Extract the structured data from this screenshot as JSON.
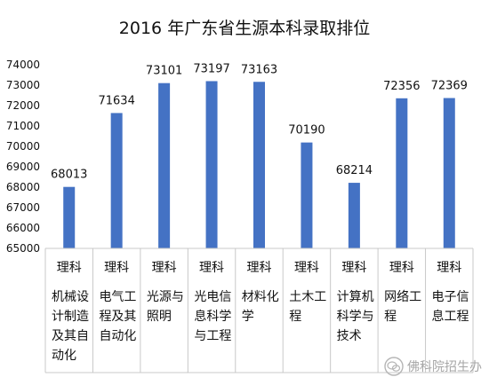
{
  "chart_data": {
    "type": "bar",
    "title": "2016 年广东省生源本科录取排位",
    "categories": [
      [
        "机械设",
        "计制造",
        "及其自",
        "动化"
      ],
      [
        "电气工",
        "程及其",
        "自动化"
      ],
      [
        "光源与",
        "照明"
      ],
      [
        "光电信",
        "息科学",
        "与工程"
      ],
      [
        "材料化",
        "学"
      ],
      [
        "土木工",
        "程"
      ],
      [
        "计算机",
        "科学与",
        "技术"
      ],
      [
        "网络工",
        "程"
      ],
      [
        "电子信",
        "息工程"
      ]
    ],
    "subject_row": [
      "理科",
      "理科",
      "理科",
      "理科",
      "理科",
      "理科",
      "理科",
      "理科",
      "理科"
    ],
    "values": [
      68013,
      71634,
      73101,
      73197,
      73163,
      70190,
      68214,
      72356,
      72369
    ],
    "data_labels": [
      "68013",
      "71634",
      "73101",
      "73197",
      "73163",
      "70190",
      "68214",
      "72356",
      "72369"
    ],
    "ylim": [
      65000,
      74000
    ],
    "yticks": [
      "65000",
      "66000",
      "67000",
      "68000",
      "69000",
      "70000",
      "71000",
      "72000",
      "73000",
      "74000"
    ],
    "xlabel": "",
    "ylabel": "",
    "grid": false,
    "legend": "none",
    "bar_color": "#4472C4"
  },
  "watermark": {
    "text": "佛科院招生办",
    "icon": "wechat-logo-icon"
  }
}
